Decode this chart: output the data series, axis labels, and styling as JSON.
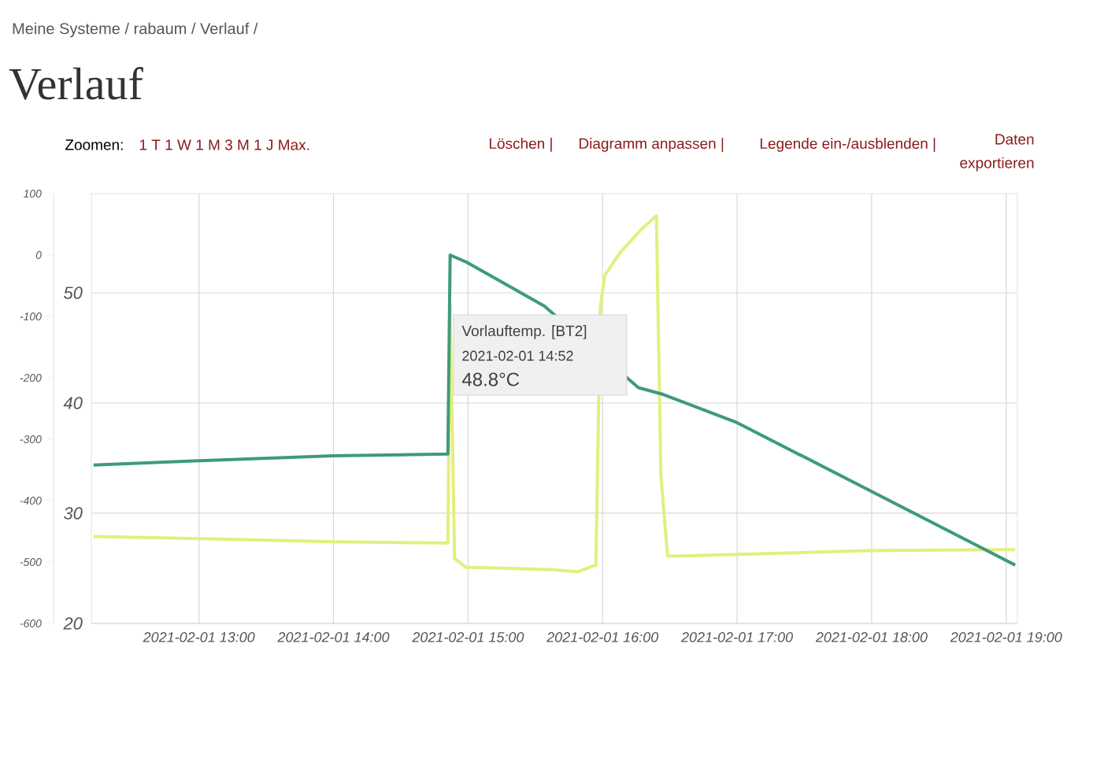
{
  "chart_data": {
    "type": "line",
    "title": "Verlauf",
    "subtitle": "Meine Systeme / rabaum / Verlauf /",
    "xlim": [
      "2021-02-01T12:12",
      "2021-02-01T19:05"
    ],
    "xticks": [
      {
        "value": "2021-02-01T13:00",
        "label": "2021-02-01 13:00"
      },
      {
        "value": "2021-02-01T14:00",
        "label": "2021-02-01 14:00"
      },
      {
        "value": "2021-02-01T15:00",
        "label": "2021-02-01 15:00"
      },
      {
        "value": "2021-02-01T16:00",
        "label": "2021-02-01 16:00"
      },
      {
        "value": "2021-02-01T17:00",
        "label": "2021-02-01 17:00"
      },
      {
        "value": "2021-02-01T18:00",
        "label": "2021-02-01 18:00"
      },
      {
        "value": "2021-02-01T19:00",
        "label": "2021-02-01 19:00"
      }
    ],
    "ylim": [
      -600,
      100
    ],
    "yticks": [
      100,
      0,
      -100,
      -200,
      -300,
      -400,
      -500,
      -600
    ],
    "y2lim": [
      20,
      59
    ],
    "y2ticks": [
      20,
      30,
      40,
      50
    ],
    "grid": true,
    "line_style": "solid",
    "series": [
      {
        "color": "#3d9b7a",
        "axis": "y",
        "x": [
          "2021-02-01T12:13",
          "2021-02-01T13:00",
          "2021-02-01T14:00",
          "2021-02-01T14:51",
          "2021-02-01T14:52",
          "2021-02-01T14:59",
          "2021-02-01T15:34",
          "2021-02-01T16:16",
          "2021-02-01T16:27",
          "2021-02-01T17:00",
          "2021-02-01T19:04"
        ],
        "values": [
          -342,
          -335,
          -327,
          -324,
          0,
          -11,
          -83,
          -216,
          -227,
          -273,
          -505
        ]
      },
      {
        "color": "#e3ef7c",
        "axis": "y2",
        "x": [
          "2021-02-01T12:13",
          "2021-02-01T13:00",
          "2021-02-01T14:00",
          "2021-02-01T14:51",
          "2021-02-01T14:52",
          "2021-02-01T14:54",
          "2021-02-01T14:59",
          "2021-02-01T15:36",
          "2021-02-01T15:49",
          "2021-02-01T15:57",
          "2021-02-01T15:59",
          "2021-02-01T16:01",
          "2021-02-01T16:08",
          "2021-02-01T16:18",
          "2021-02-01T16:24",
          "2021-02-01T16:26",
          "2021-02-01T16:29",
          "2021-02-01T16:32",
          "2021-02-01T17:58",
          "2021-02-01T19:04"
        ],
        "values": [
          27.9,
          27.7,
          27.4,
          27.3,
          48.8,
          25.9,
          25.1,
          24.9,
          24.7,
          25.3,
          48.7,
          51.6,
          53.7,
          55.9,
          57.0,
          33.4,
          26.1,
          26.1,
          26.6,
          26.7
        ]
      }
    ],
    "annotations": [
      "Zoomen:",
      "1 T 1 W 1 M 3 M 1 J Max.",
      "Löschen |",
      "Diagramm anpassen |",
      "Legende ein-/ausblenden |",
      "Daten exportieren",
      "Vorlauftemp. [BT2]",
      "2021-02-01 14:52",
      "48.8°C"
    ]
  }
}
